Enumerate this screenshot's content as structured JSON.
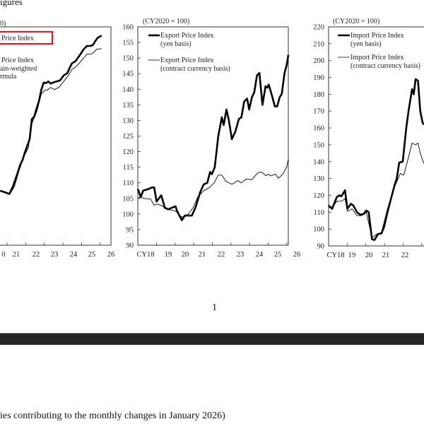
{
  "document": {
    "top_heading_fragment": "igures",
    "page_number": "1",
    "bottom_text_fragment": "ies contributing to the monthly changes in January 2026)"
  },
  "colors": {
    "highlight_box": "#d0202a",
    "dark_bar": "#262626",
    "line": "#000000"
  },
  "chart_data": [
    {
      "type": "line",
      "unit_label": "0)",
      "legend": [
        {
          "lines": [
            "Price Index"
          ],
          "highlighted": true
        },
        {
          "lines": [
            "Price Index",
            "ain-weighted",
            "rmula"
          ]
        }
      ],
      "x_tick_labels": [
        "0",
        "21",
        "22",
        "23",
        "24",
        "25",
        "26"
      ],
      "xlim": [
        2018,
        2026.58
      ],
      "ylim": [
        90,
        130
      ],
      "series": [
        {
          "style": "bold",
          "points": [
            [
              2020.63,
              100.0
            ],
            [
              2020.88,
              99.7
            ],
            [
              2021.13,
              99.4
            ],
            [
              2021.32,
              100.8
            ],
            [
              2021.45,
              102.1
            ],
            [
              2021.58,
              103.4
            ],
            [
              2021.7,
              104.7
            ],
            [
              2021.83,
              105.6
            ],
            [
              2021.95,
              106.9
            ],
            [
              2022.08,
              108.2
            ],
            [
              2022.21,
              109.4
            ],
            [
              2022.33,
              113.1
            ],
            [
              2022.46,
              113.6
            ],
            [
              2022.59,
              115.1
            ],
            [
              2022.71,
              116.4
            ],
            [
              2022.84,
              118.5
            ],
            [
              2022.97,
              119.8
            ],
            [
              2023.09,
              119.7
            ],
            [
              2023.22,
              120.0
            ],
            [
              2023.34,
              119.6
            ],
            [
              2023.47,
              119.8
            ],
            [
              2023.66,
              120.0
            ],
            [
              2023.85,
              120.2
            ],
            [
              2024.04,
              121.1
            ],
            [
              2024.23,
              121.5
            ],
            [
              2024.35,
              122.4
            ],
            [
              2024.48,
              123.3
            ],
            [
              2024.67,
              123.7
            ],
            [
              2024.86,
              124.6
            ],
            [
              2024.98,
              125.2
            ],
            [
              2025.11,
              125.9
            ],
            [
              2025.3,
              126.5
            ],
            [
              2025.49,
              126.5
            ],
            [
              2025.62,
              126.7
            ],
            [
              2025.74,
              127.4
            ],
            [
              2025.87,
              128.0
            ],
            [
              2026.08,
              128.4
            ]
          ]
        },
        {
          "style": "thin",
          "points": [
            [
              2020.63,
              99.9
            ],
            [
              2021.13,
              99.3
            ],
            [
              2021.39,
              100.7
            ],
            [
              2021.64,
              103.6
            ],
            [
              2021.89,
              106.2
            ],
            [
              2022.14,
              107.8
            ],
            [
              2022.33,
              112.3
            ],
            [
              2022.59,
              114.4
            ],
            [
              2022.84,
              117.7
            ],
            [
              2023.03,
              118.4
            ],
            [
              2023.16,
              118.4
            ],
            [
              2023.34,
              118.9
            ],
            [
              2023.53,
              118.5
            ],
            [
              2023.78,
              118.9
            ],
            [
              2024.04,
              120.0
            ],
            [
              2024.29,
              121.1
            ],
            [
              2024.48,
              122.2
            ],
            [
              2024.67,
              122.6
            ],
            [
              2024.92,
              123.5
            ],
            [
              2025.11,
              124.3
            ],
            [
              2025.3,
              125.0
            ],
            [
              2025.49,
              125.0
            ],
            [
              2025.62,
              125.2
            ],
            [
              2025.81,
              125.9
            ],
            [
              2026.08,
              126.0
            ]
          ]
        }
      ]
    },
    {
      "type": "line",
      "unit_label": "(CY2020 = 100)",
      "legend": [
        {
          "lines": [
            "Export Price Index",
            "(yen basis)"
          ],
          "style": "bold"
        },
        {
          "lines": [
            "Export Price Index",
            "(contract currency basis)"
          ],
          "style": "thin"
        }
      ],
      "y_ticks": [
        160,
        155,
        150,
        145,
        140,
        135,
        130,
        125,
        120,
        115,
        110,
        105,
        100,
        95,
        90
      ],
      "x_tick_labels": [
        "CY18",
        "19",
        "20",
        "21",
        "22",
        "23",
        "24",
        "25",
        "26"
      ],
      "xlim": [
        2018,
        2026.08
      ],
      "ylim": [
        90,
        160
      ],
      "series": [
        {
          "name": "Export Price Index (yen basis)",
          "style": "bold",
          "points": [
            [
              2018.0,
              108
            ],
            [
              2018.16,
              105.5
            ],
            [
              2018.29,
              107.5
            ],
            [
              2018.57,
              108
            ],
            [
              2018.76,
              108.5
            ],
            [
              2018.88,
              108.5
            ],
            [
              2019.01,
              104
            ],
            [
              2019.26,
              106
            ],
            [
              2019.45,
              102
            ],
            [
              2019.64,
              101.5
            ],
            [
              2020.02,
              102.5
            ],
            [
              2020.11,
              101
            ],
            [
              2020.36,
              98
            ],
            [
              2020.53,
              99.5
            ],
            [
              2020.9,
              99.5
            ],
            [
              2021.09,
              102
            ],
            [
              2021.35,
              107
            ],
            [
              2021.54,
              109.5
            ],
            [
              2021.73,
              110
            ],
            [
              2021.88,
              113.5
            ],
            [
              2021.98,
              112.8
            ],
            [
              2022.13,
              115
            ],
            [
              2022.32,
              125
            ],
            [
              2022.51,
              131
            ],
            [
              2022.61,
              128.5
            ],
            [
              2022.76,
              133.5
            ],
            [
              2022.89,
              130
            ],
            [
              2023.05,
              124
            ],
            [
              2023.24,
              126.5
            ],
            [
              2023.43,
              130.5
            ],
            [
              2023.56,
              131
            ],
            [
              2023.71,
              136
            ],
            [
              2023.87,
              137
            ],
            [
              2023.98,
              133.5
            ],
            [
              2024.13,
              137.5
            ],
            [
              2024.25,
              139
            ],
            [
              2024.4,
              144.5
            ],
            [
              2024.53,
              145.2
            ],
            [
              2024.69,
              135
            ],
            [
              2024.86,
              141
            ],
            [
              2024.95,
              140.5
            ],
            [
              2025.03,
              141.5
            ],
            [
              2025.2,
              138
            ],
            [
              2025.36,
              134.5
            ],
            [
              2025.48,
              134.5
            ],
            [
              2025.62,
              137.5
            ],
            [
              2025.73,
              138.5
            ],
            [
              2025.87,
              145
            ],
            [
              2026.0,
              148
            ],
            [
              2026.08,
              151
            ]
          ]
        },
        {
          "name": "Export Price Index (contract currency basis)",
          "style": "thin",
          "points": [
            [
              2018.0,
              105
            ],
            [
              2018.16,
              105.5
            ],
            [
              2018.32,
              105
            ],
            [
              2018.69,
              104.8
            ],
            [
              2018.88,
              102.8
            ],
            [
              2019.07,
              103.2
            ],
            [
              2019.33,
              102.5
            ],
            [
              2019.58,
              101.5
            ],
            [
              2020.02,
              101
            ],
            [
              2020.36,
              99
            ],
            [
              2020.71,
              100
            ],
            [
              2020.97,
              102
            ],
            [
              2021.22,
              105.5
            ],
            [
              2021.54,
              107.5
            ],
            [
              2021.85,
              108.5
            ],
            [
              2022.1,
              110
            ],
            [
              2022.32,
              112.5
            ],
            [
              2022.51,
              112.5
            ],
            [
              2022.73,
              110.5
            ],
            [
              2023.05,
              109.5
            ],
            [
              2023.37,
              110.7
            ],
            [
              2023.56,
              110
            ],
            [
              2023.81,
              111.2
            ],
            [
              2024.12,
              111
            ],
            [
              2024.44,
              113.2
            ],
            [
              2024.63,
              113.5
            ],
            [
              2024.88,
              112.3
            ],
            [
              2025.01,
              112.8
            ],
            [
              2025.13,
              112.2
            ],
            [
              2025.39,
              112.8
            ],
            [
              2025.54,
              111.5
            ],
            [
              2025.7,
              112.3
            ],
            [
              2025.83,
              113.2
            ],
            [
              2025.89,
              114
            ],
            [
              2025.99,
              115
            ],
            [
              2026.08,
              117.5
            ]
          ]
        }
      ]
    },
    {
      "type": "line",
      "unit_label": "(CY2020 = 100)",
      "legend": [
        {
          "lines": [
            "Import Price Index",
            "(yen basis)"
          ],
          "style": "bold"
        },
        {
          "lines": [
            "Import Price Index",
            "(contract currency basis)"
          ],
          "style": "thin"
        }
      ],
      "y_ticks": [
        220,
        210,
        200,
        190,
        180,
        170,
        160,
        150,
        140,
        130,
        120,
        110,
        100,
        90
      ],
      "x_tick_labels": [
        "CY18",
        "19",
        "20",
        "21",
        "22"
      ],
      "xlim": [
        2018,
        2026.08
      ],
      "ylim": [
        90,
        220
      ],
      "series": [
        {
          "name": "Import Price Index (yen basis)",
          "style": "bold",
          "points": [
            [
              2018.0,
              114
            ],
            [
              2018.19,
              112
            ],
            [
              2018.44,
              119
            ],
            [
              2018.57,
              120
            ],
            [
              2018.69,
              119.5
            ],
            [
              2018.88,
              123
            ],
            [
              2019.01,
              112
            ],
            [
              2019.2,
              115
            ],
            [
              2019.33,
              114
            ],
            [
              2019.52,
              110
            ],
            [
              2019.7,
              108.5
            ],
            [
              2019.89,
              109
            ],
            [
              2020.02,
              111
            ],
            [
              2020.15,
              110
            ],
            [
              2020.33,
              94
            ],
            [
              2020.46,
              93.5
            ],
            [
              2020.65,
              97
            ],
            [
              2020.84,
              97.5
            ],
            [
              2020.97,
              101
            ],
            [
              2021.16,
              110
            ],
            [
              2021.35,
              118
            ],
            [
              2021.54,
              126
            ],
            [
              2021.66,
              130
            ],
            [
              2021.79,
              139.5
            ],
            [
              2021.98,
              140
            ],
            [
              2022.17,
              160
            ],
            [
              2022.29,
              170
            ],
            [
              2022.48,
              183
            ],
            [
              2022.57,
              180
            ],
            [
              2022.67,
              189
            ],
            [
              2022.8,
              188
            ],
            [
              2022.92,
              170
            ],
            [
              2023.05,
              163
            ],
            [
              2023.11,
              162
            ]
          ]
        },
        {
          "name": "Import Price Index (contract currency basis)",
          "style": "thin",
          "points": [
            [
              2018.0,
              113
            ],
            [
              2018.19,
              113
            ],
            [
              2018.44,
              116.5
            ],
            [
              2018.69,
              116.5
            ],
            [
              2018.88,
              118
            ],
            [
              2019.01,
              110.5
            ],
            [
              2019.26,
              112
            ],
            [
              2019.52,
              108
            ],
            [
              2019.77,
              108
            ],
            [
              2020.02,
              110
            ],
            [
              2020.33,
              95
            ],
            [
              2020.59,
              97
            ],
            [
              2020.84,
              98
            ],
            [
              2021.16,
              112
            ],
            [
              2021.54,
              125
            ],
            [
              2021.85,
              133
            ],
            [
              2022.04,
              132
            ],
            [
              2022.23,
              140
            ],
            [
              2022.48,
              151
            ],
            [
              2022.67,
              150
            ],
            [
              2022.8,
              151
            ],
            [
              2022.92,
              145
            ],
            [
              2023.11,
              139
            ]
          ]
        }
      ]
    }
  ]
}
